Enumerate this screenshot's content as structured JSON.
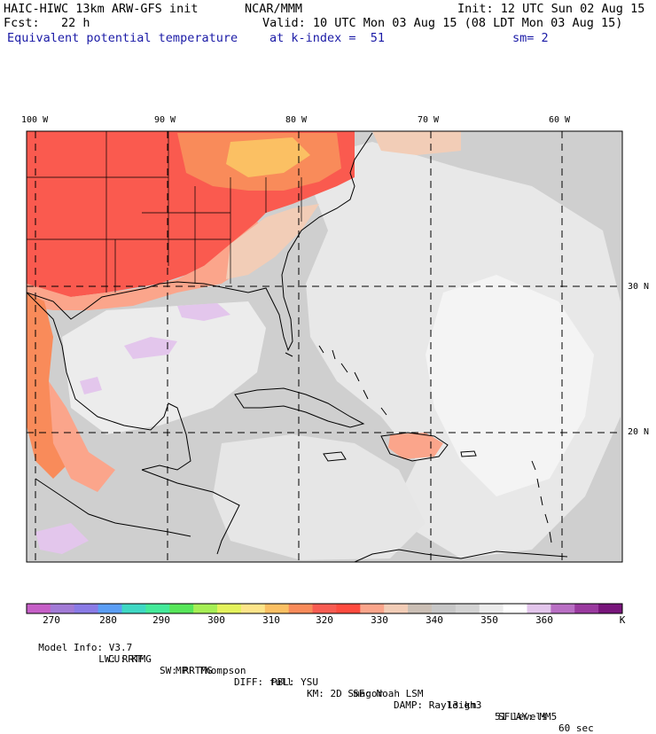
{
  "header": {
    "model_title": "HAIC-HIWC 13km ARW-GFS init",
    "org": "NCAR/MMM",
    "init": "Init: 12 UTC Sun 02 Aug 15",
    "fcst": "Fcst:   22 h",
    "valid": "Valid: 10 UTC Mon 03 Aug 15 (08 LDT Mon 03 Aug 15)",
    "field": "Equivalent potential temperature",
    "level": "at k-index =  51",
    "smooth": "sm= 2"
  },
  "lon_labels": [
    "100 W",
    "90 W",
    "80 W",
    "70 W",
    "60 W"
  ],
  "lat_labels": [
    "30 N",
    "20 N"
  ],
  "colorbar": {
    "colors": [
      "#c65fc7",
      "#a27bd6",
      "#8a7be6",
      "#5b9ef5",
      "#3fd8c4",
      "#44ea9a",
      "#57e65a",
      "#a6ef55",
      "#e4f25c",
      "#fde58a",
      "#fbc063",
      "#f98b5a",
      "#f85c52",
      "#ff4b3f",
      "#fba58b",
      "#f2cdb7",
      "#cbbfb5",
      "#c7c7c7",
      "#d3d3d3",
      "#ececec",
      "#ffffff",
      "#e3c6ec",
      "#b96fc4",
      "#9a3a9f",
      "#78157b"
    ],
    "ticks": [
      "270",
      "280",
      "290",
      "300",
      "310",
      "320",
      "330",
      "340",
      "350",
      "360"
    ],
    "unit": "K"
  },
  "footer": {
    "line1": [
      "Model Info: V3.7",
      "CU: KF",
      "MP: Thompson",
      "PBL: YSU",
      "SF: Noah LSM",
      "13 km",
      "51 levels",
      "60 sec"
    ],
    "line2": [
      "LW: RRTMG",
      "SW: RRTMG",
      "DIFF: full",
      "KM: 2D Smagor",
      "DAMP: Rayleigh3",
      "SFLAY: MM5"
    ]
  },
  "map_colors": {
    "hot_red": "#fa5a4f",
    "orange": "#f98b5a",
    "peach": "#fba58b",
    "yellow": "#fbc063",
    "tan": "#f2cdb7",
    "gray": "#c9c9c9",
    "light_gray": "#dcdcdc",
    "white": "#f6f6f6",
    "lavender": "#e3c6ec",
    "coast": "#000000"
  }
}
